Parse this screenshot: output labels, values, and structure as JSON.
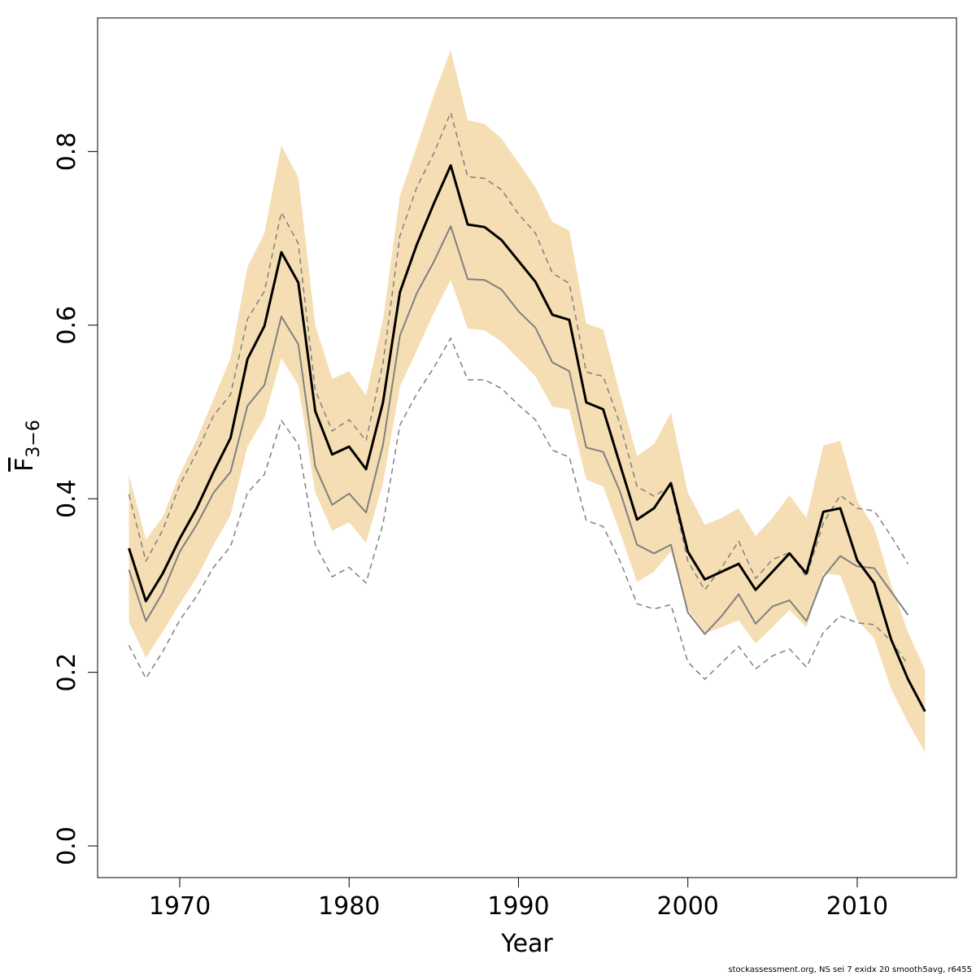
{
  "chart_data": {
    "type": "line",
    "x_label": "Year",
    "y_label": "F",
    "y_label_sub": "3−6",
    "footer": "stockassessment.org, NS sei 7 exidx 20 smooth5avg, r6455",
    "x": [
      1967,
      1968,
      1969,
      1970,
      1971,
      1972,
      1973,
      1974,
      1975,
      1976,
      1977,
      1978,
      1979,
      1980,
      1981,
      1982,
      1983,
      1984,
      1985,
      1986,
      1987,
      1988,
      1989,
      1990,
      1991,
      1992,
      1993,
      1994,
      1995,
      1996,
      1997,
      1998,
      1999,
      2000,
      2001,
      2002,
      2003,
      2004,
      2005,
      2006,
      2007,
      2008,
      2009,
      2010,
      2011,
      2012,
      2013,
      2014
    ],
    "band": {
      "color": "#f5deb3",
      "upper": [
        0.428,
        0.353,
        0.379,
        0.428,
        0.468,
        0.515,
        0.562,
        0.667,
        0.706,
        0.807,
        0.77,
        0.6,
        0.538,
        0.547,
        0.519,
        0.606,
        0.749,
        0.806,
        0.865,
        0.917,
        0.836,
        0.832,
        0.815,
        0.787,
        0.759,
        0.719,
        0.709,
        0.602,
        0.595,
        0.52,
        0.449,
        0.463,
        0.499,
        0.407,
        0.37,
        0.378,
        0.389,
        0.357,
        0.378,
        0.404,
        0.378,
        0.461,
        0.467,
        0.398,
        0.367,
        0.301,
        0.246,
        0.203
      ],
      "lower": [
        0.258,
        0.217,
        0.247,
        0.279,
        0.309,
        0.347,
        0.381,
        0.46,
        0.493,
        0.562,
        0.531,
        0.407,
        0.363,
        0.373,
        0.349,
        0.418,
        0.529,
        0.571,
        0.614,
        0.652,
        0.596,
        0.594,
        0.581,
        0.561,
        0.541,
        0.506,
        0.503,
        0.422,
        0.414,
        0.361,
        0.304,
        0.316,
        0.339,
        0.273,
        0.245,
        0.252,
        0.26,
        0.233,
        0.252,
        0.272,
        0.252,
        0.314,
        0.312,
        0.26,
        0.239,
        0.181,
        0.142,
        0.108
      ]
    },
    "series": [
      {
        "color": "#808080",
        "dash": true,
        "width": 1.5,
        "values": [
          0.405,
          0.328,
          0.364,
          0.416,
          0.453,
          0.496,
          0.52,
          0.607,
          0.639,
          0.73,
          0.694,
          0.525,
          0.478,
          0.491,
          0.467,
          0.556,
          0.703,
          0.759,
          0.798,
          0.845,
          0.771,
          0.769,
          0.756,
          0.728,
          0.706,
          0.66,
          0.648,
          0.546,
          0.541,
          0.486,
          0.414,
          0.403,
          0.415,
          0.328,
          0.295,
          0.321,
          0.351,
          0.308,
          0.33,
          0.338,
          0.31,
          0.372,
          0.404,
          0.389,
          0.386,
          0.357,
          0.325,
          null
        ]
      },
      {
        "color": "#808080",
        "dash": true,
        "width": 1.5,
        "values": [
          0.231,
          0.193,
          0.224,
          0.26,
          0.288,
          0.321,
          0.345,
          0.407,
          0.428,
          0.49,
          0.463,
          0.347,
          0.31,
          0.321,
          0.303,
          0.371,
          0.485,
          0.521,
          0.551,
          0.585,
          0.537,
          0.537,
          0.527,
          0.508,
          0.491,
          0.456,
          0.448,
          0.375,
          0.368,
          0.328,
          0.279,
          0.273,
          0.278,
          0.212,
          0.192,
          0.211,
          0.23,
          0.204,
          0.219,
          0.227,
          0.206,
          0.246,
          0.265,
          0.257,
          0.255,
          0.236,
          0.209,
          null
        ]
      },
      {
        "color": "#808080",
        "dash": false,
        "width": 2,
        "values": [
          0.318,
          0.259,
          0.292,
          0.339,
          0.37,
          0.407,
          0.431,
          0.507,
          0.531,
          0.61,
          0.578,
          0.437,
          0.393,
          0.406,
          0.384,
          0.462,
          0.588,
          0.637,
          0.673,
          0.714,
          0.653,
          0.652,
          0.641,
          0.616,
          0.597,
          0.557,
          0.547,
          0.459,
          0.454,
          0.408,
          0.347,
          0.337,
          0.347,
          0.269,
          0.244,
          0.265,
          0.29,
          0.256,
          0.276,
          0.283,
          0.259,
          0.31,
          0.334,
          0.322,
          0.32,
          0.293,
          0.266,
          null
        ]
      },
      {
        "color": "#000000",
        "dash": false,
        "width": 3,
        "values": [
          0.343,
          0.282,
          0.314,
          0.354,
          0.389,
          0.431,
          0.47,
          0.561,
          0.599,
          0.684,
          0.649,
          0.501,
          0.451,
          0.46,
          0.434,
          0.511,
          0.638,
          0.693,
          0.74,
          0.784,
          0.716,
          0.713,
          0.698,
          0.674,
          0.65,
          0.612,
          0.606,
          0.511,
          0.503,
          0.439,
          0.376,
          0.389,
          0.418,
          0.339,
          0.307,
          0.316,
          0.325,
          0.295,
          0.316,
          0.337,
          0.314,
          0.385,
          0.389,
          0.329,
          0.303,
          0.238,
          0.192,
          0.155
        ]
      }
    ],
    "xlim": [
      1965.15,
      2015.86
    ],
    "ylim": [
      -0.0365,
      0.954
    ],
    "xticks": [
      1970,
      1980,
      1990,
      2000,
      2010
    ],
    "yticks": [
      {
        "value": 0,
        "label": "0.0"
      },
      0.2,
      0.4,
      0.6,
      0.8
    ]
  }
}
